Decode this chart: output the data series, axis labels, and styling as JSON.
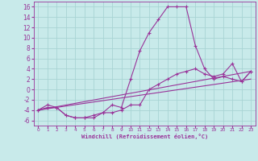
{
  "background_color": "#c8eaea",
  "grid_color": "#a8d4d4",
  "line_color": "#993399",
  "marker": "+",
  "xlabel": "Windchill (Refroidissement éolien,°C)",
  "xlim": [
    -0.5,
    23.5
  ],
  "ylim": [
    -7,
    17
  ],
  "xticks": [
    0,
    1,
    2,
    3,
    4,
    5,
    6,
    7,
    8,
    9,
    10,
    11,
    12,
    13,
    14,
    15,
    16,
    17,
    18,
    19,
    20,
    21,
    22,
    23
  ],
  "yticks": [
    -6,
    -4,
    -2,
    0,
    2,
    4,
    6,
    8,
    10,
    12,
    14,
    16
  ],
  "series": [
    {
      "x": [
        0,
        1,
        2,
        3,
        4,
        5,
        6,
        7,
        8,
        9,
        10,
        11,
        12,
        13,
        14,
        15,
        16,
        17,
        18,
        19,
        20,
        21,
        22,
        23
      ],
      "y": [
        -4,
        -3,
        -3.5,
        -5,
        -5.5,
        -5.5,
        -5.5,
        -4.5,
        -3,
        -3.5,
        2,
        7.5,
        11,
        13.5,
        16,
        16,
        16,
        8.5,
        4,
        2,
        2.5,
        2,
        1.5,
        3.5
      ],
      "has_marker": true
    },
    {
      "x": [
        0,
        1,
        2,
        3,
        4,
        5,
        6,
        7,
        8,
        9,
        10,
        11,
        12,
        13,
        14,
        15,
        16,
        17,
        18,
        19,
        20,
        21,
        22,
        23
      ],
      "y": [
        -4,
        -3.5,
        -3.5,
        -5,
        -5.5,
        -5.5,
        -5,
        -4.5,
        -4.5,
        -4,
        -3,
        -3,
        0,
        1,
        2,
        3,
        3.5,
        4,
        3,
        2.5,
        3,
        5,
        1.5,
        3.5
      ],
      "has_marker": true
    },
    {
      "x": [
        0,
        23
      ],
      "y": [
        -4,
        2
      ],
      "has_marker": false
    },
    {
      "x": [
        0,
        23
      ],
      "y": [
        -4,
        3.5
      ],
      "has_marker": false
    }
  ]
}
